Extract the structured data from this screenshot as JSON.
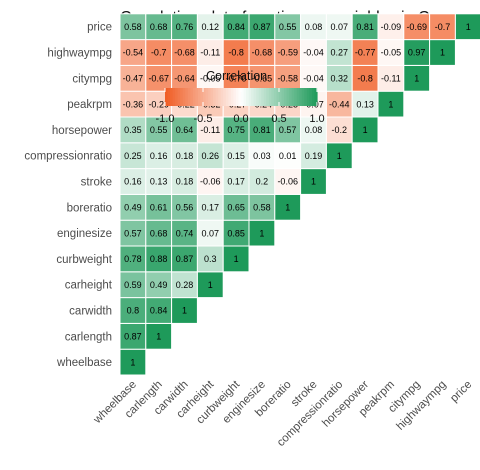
{
  "chart_data": {
    "type": "heatmap",
    "title": "Correlation plot of continuous variables in Car",
    "variables": [
      "wheelbase",
      "carlength",
      "carwidth",
      "carheight",
      "curbweight",
      "enginesize",
      "boreratio",
      "stroke",
      "compressionratio",
      "horsepower",
      "peakrpm",
      "citympg",
      "highwaympg",
      "price"
    ],
    "matrix": [
      [
        1
      ],
      [
        0.87,
        1
      ],
      [
        0.8,
        0.84,
        1
      ],
      [
        0.59,
        0.49,
        0.28,
        1
      ],
      [
        0.78,
        0.88,
        0.87,
        0.3,
        1
      ],
      [
        0.57,
        0.68,
        0.74,
        0.07,
        0.85,
        1
      ],
      [
        0.49,
        0.61,
        0.56,
        0.17,
        0.65,
        0.58,
        1
      ],
      [
        0.16,
        0.13,
        0.18,
        -0.06,
        0.17,
        0.2,
        -0.06,
        1
      ],
      [
        0.25,
        0.16,
        0.18,
        0.26,
        0.15,
        0.03,
        0.01,
        0.19,
        1
      ],
      [
        0.35,
        0.55,
        0.64,
        -0.11,
        0.75,
        0.81,
        0.57,
        0.08,
        -0.2,
        1
      ],
      [
        -0.36,
        -0.29,
        -0.22,
        -0.32,
        -0.27,
        -0.24,
        -0.25,
        -0.07,
        -0.44,
        0.13,
        1
      ],
      [
        -0.47,
        -0.67,
        -0.64,
        -0.05,
        -0.76,
        -0.65,
        -0.58,
        -0.04,
        0.32,
        -0.8,
        -0.11,
        1
      ],
      [
        -0.54,
        -0.7,
        -0.68,
        -0.11,
        -0.8,
        -0.68,
        -0.59,
        -0.04,
        0.27,
        -0.77,
        -0.05,
        0.97,
        1
      ],
      [
        0.58,
        0.68,
        0.76,
        0.12,
        0.84,
        0.87,
        0.55,
        0.08,
        0.07,
        0.81,
        -0.09,
        -0.69,
        -0.7,
        1
      ]
    ],
    "display": [
      [
        "1"
      ],
      [
        "0.87",
        "1"
      ],
      [
        "0.8",
        "0.84",
        "1"
      ],
      [
        "0.59",
        "0.49",
        "0.28",
        "1"
      ],
      [
        "0.78",
        "0.88",
        "0.87",
        "0.3",
        "1"
      ],
      [
        "0.57",
        "0.68",
        "0.74",
        "0.07",
        "0.85",
        "1"
      ],
      [
        "0.49",
        "0.61",
        "0.56",
        "0.17",
        "0.65",
        "0.58",
        "1"
      ],
      [
        "0.16",
        "0.13",
        "0.18",
        "-0.06",
        "0.17",
        "0.2",
        "-0.06",
        "1"
      ],
      [
        "0.25",
        "0.16",
        "0.18",
        "0.26",
        "0.15",
        "0.03",
        "0.01",
        "0.19",
        "1"
      ],
      [
        "0.35",
        "0.55",
        "0.64",
        "-0.11",
        "0.75",
        "0.81",
        "0.57",
        "0.08",
        "-0.2",
        "1"
      ],
      [
        "-0.36",
        "-0.29",
        "-0.22",
        "-0.32",
        "-0.27",
        "-0.24",
        "-0.25",
        "-0.07",
        "-0.44",
        "0.13",
        "1"
      ],
      [
        "-0.47",
        "-0.67",
        "-0.64",
        "-0.05",
        "-0.76",
        "-0.65",
        "-0.58",
        "-0.04",
        "0.32",
        "-0.8",
        "-0.11",
        "1"
      ],
      [
        "-0.54",
        "-0.7",
        "-0.68",
        "-0.11",
        "-0.8",
        "-0.68",
        "-0.59",
        "-0.04",
        "0.27",
        "-0.77",
        "-0.05",
        "0.97",
        "1"
      ],
      [
        "0.58",
        "0.68",
        "0.76",
        "0.12",
        "0.84",
        "0.87",
        "0.55",
        "0.08",
        "0.07",
        "0.81",
        "-0.09",
        "-0.69",
        "-0.7",
        "1"
      ]
    ],
    "legend": {
      "title": "Correlation",
      "ticks": [
        "-1.0",
        "-0.5",
        "0.0",
        "0.5",
        "1.0"
      ],
      "tick_values": [
        -1,
        -0.5,
        0,
        0.5,
        1
      ],
      "placement": "top-left"
    },
    "scale": {
      "low": -1,
      "mid": 0,
      "high": 1
    },
    "colors": {
      "low": "#f05b22",
      "mid": "#ffffff",
      "high": "#1e9a5a"
    },
    "grid": false
  }
}
